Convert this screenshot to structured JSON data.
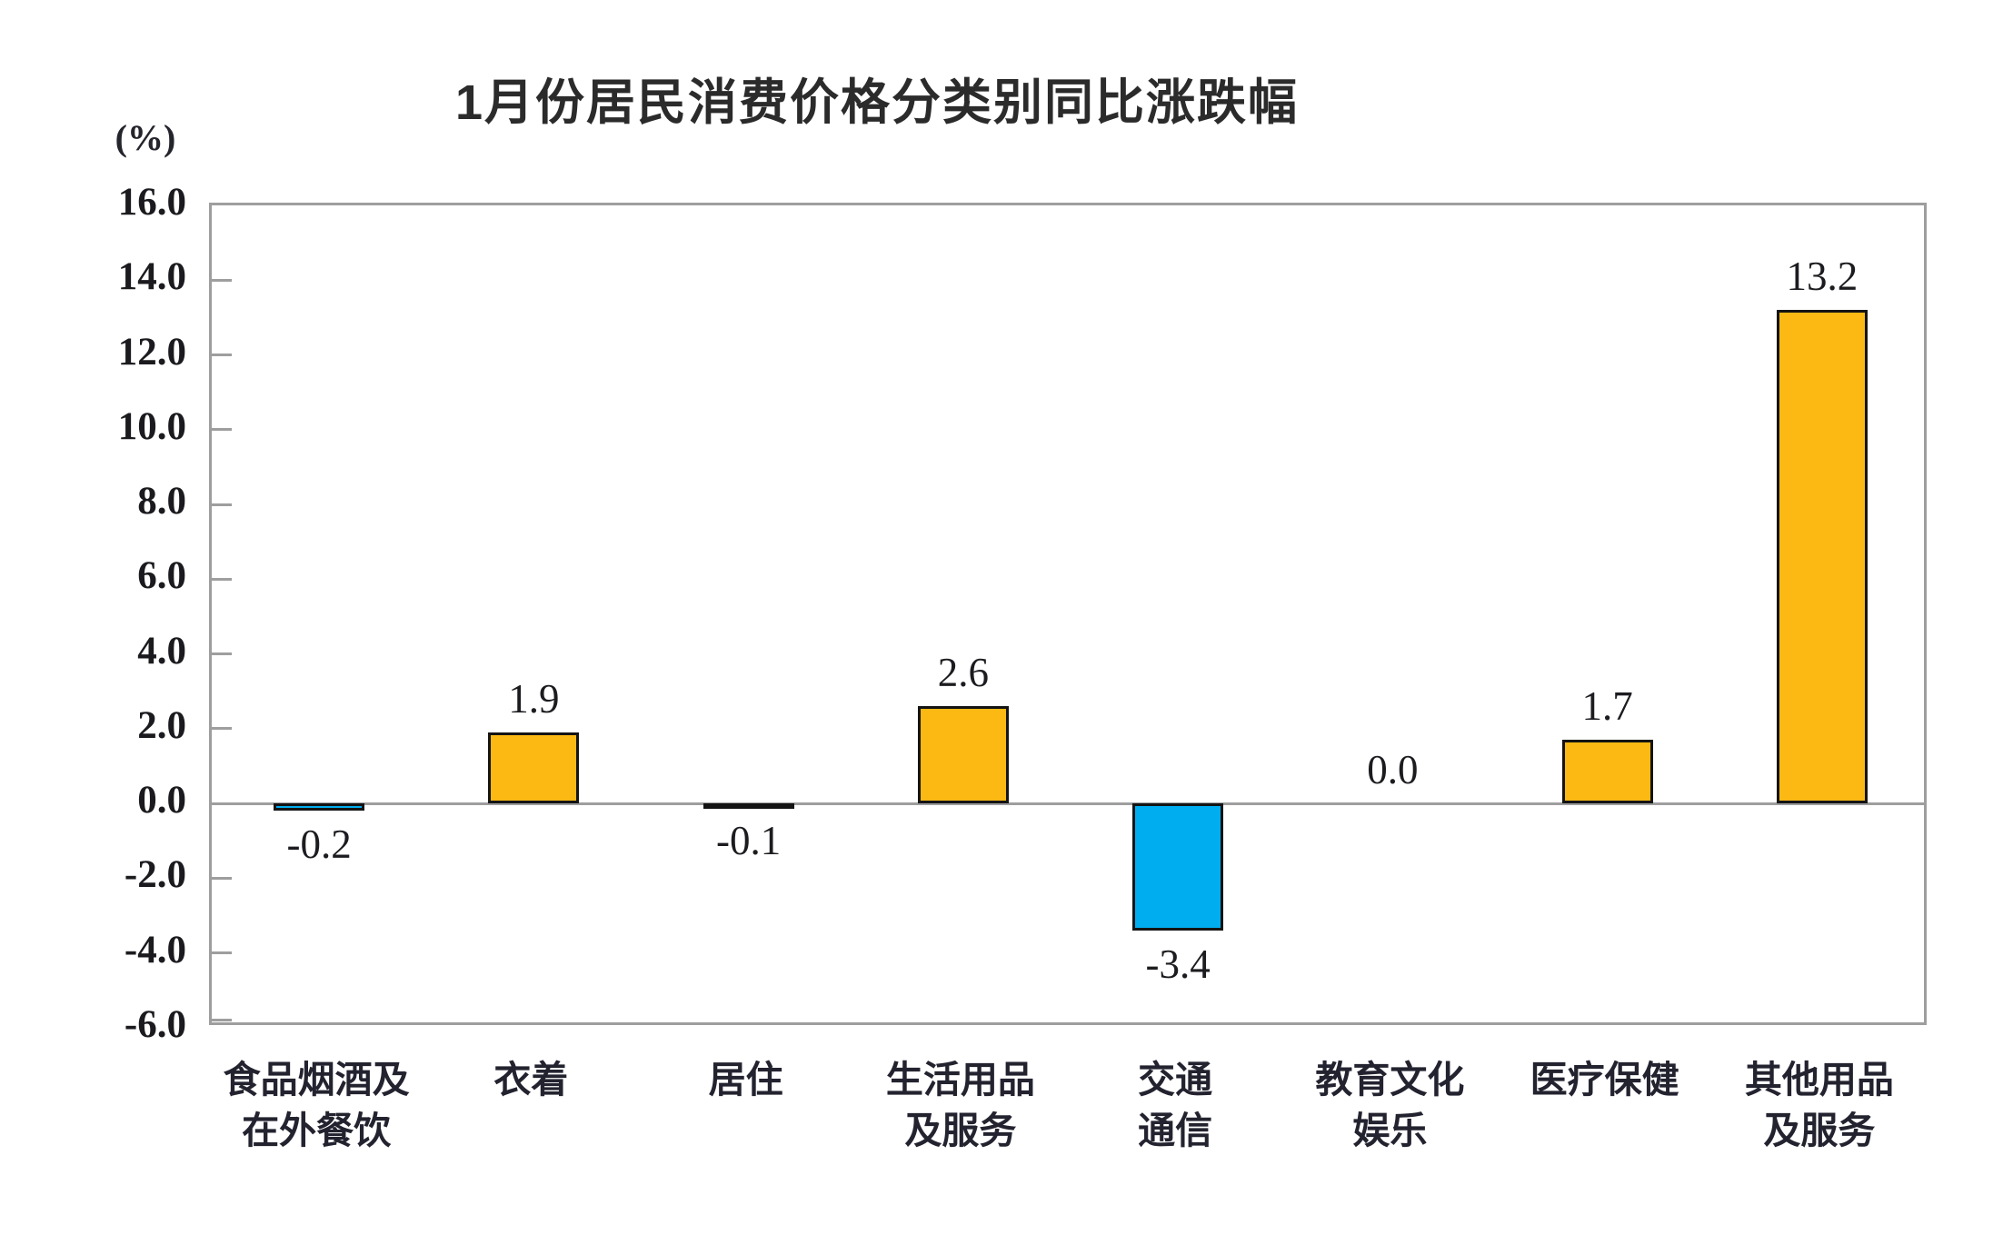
{
  "chart_data": {
    "type": "bar",
    "title": "1月份居民消费价格分类别同比涨跌幅",
    "unit_label": "(%)",
    "categories": [
      [
        "食品烟酒及",
        "在外餐饮"
      ],
      [
        "衣着"
      ],
      [
        "居住"
      ],
      [
        "生活用品",
        "及服务"
      ],
      [
        "交通",
        "通信"
      ],
      [
        "教育文化",
        "娱乐"
      ],
      [
        "医疗保健"
      ],
      [
        "其他用品",
        "及服务"
      ]
    ],
    "values": [
      -0.2,
      1.9,
      -0.1,
      2.6,
      -3.4,
      0.0,
      1.7,
      13.2
    ],
    "data_labels": [
      "-0.2",
      "1.9",
      "-0.1",
      "2.6",
      "-3.4",
      "0.0",
      "1.7",
      "13.2"
    ],
    "ylim": [
      -6.0,
      16.0
    ],
    "ytick_step": 2.0,
    "ytick_labels": [
      "16.0",
      "14.0",
      "12.0",
      "10.0",
      "8.0",
      "6.0",
      "4.0",
      "2.0",
      "0.0",
      "-2.0",
      "-4.0",
      "-6.0"
    ],
    "grid": false,
    "legend": "none",
    "colors": {
      "positive_bar": "#FDB913",
      "negative_bar": "#00AEEF",
      "bar_outline": "#141414",
      "axis": "#9e9e9e",
      "text": "#1c1c20"
    }
  }
}
